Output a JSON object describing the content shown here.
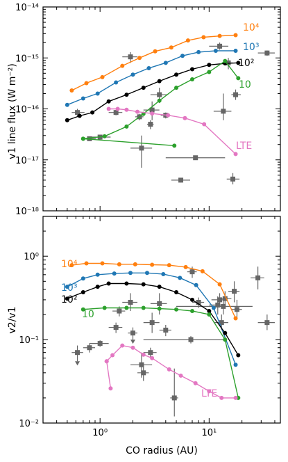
{
  "chart_data": [
    {
      "type": "scatter",
      "panel": "top",
      "ylabel": "v1 line flux (W m⁻²)",
      "xlabel": "",
      "xscale": "log",
      "yscale": "log",
      "xlim": [
        0.3,
        45
      ],
      "ylim": [
        1e-18,
        1e-14
      ],
      "ytick_labels": [
        "10⁻¹⁸",
        "10⁻¹⁷",
        "10⁻¹⁶",
        "10⁻¹⁵",
        "10⁻¹⁴"
      ],
      "series": [
        {
          "name": "10⁴",
          "color": "#ff7f0e",
          "x": [
            0.55,
            0.75,
            1.05,
            1.6,
            2.3,
            3.2,
            4.5,
            6.4,
            8.9,
            12.5,
            17.5
          ],
          "y": [
            2.3e-16,
            3.2e-16,
            4.2e-16,
            7e-16,
            1e-15,
            1.35e-15,
            1.6e-15,
            2.2e-15,
            2.55e-15,
            2.7e-15,
            2.8e-15
          ]
        },
        {
          "name": "10³",
          "color": "#1f77b4",
          "x": [
            0.5,
            0.7,
            0.95,
            1.4,
            2.0,
            2.8,
            4.0,
            5.7,
            8.0,
            11.5,
            17.5
          ],
          "y": [
            1.2e-16,
            1.6e-16,
            2e-16,
            3.3e-16,
            4.7e-16,
            6.3e-16,
            8e-16,
            1.1e-15,
            1.3e-15,
            1.38e-15,
            1.38e-15
          ]
        },
        {
          "name": "10²",
          "color": "#000000",
          "x": [
            0.5,
            0.65,
            0.85,
            1.2,
            1.75,
            2.5,
            3.5,
            5.0,
            7.0,
            10.0,
            14.0,
            18.5
          ],
          "y": [
            6e-17,
            7.3e-17,
            8.5e-17,
            1.4e-16,
            1.9e-16,
            2.6e-16,
            3.5e-16,
            4.7e-16,
            6e-16,
            7.3e-16,
            7.8e-16,
            8e-16
          ]
        },
        {
          "name": "10",
          "color": "#2ca02c",
          "x": [
            0.7,
            1.1,
            1.75,
            2.5,
            3.5,
            5.0,
            7.0,
            10.0,
            14.0,
            18.5
          ],
          "y": [
            2.6e-17,
            2.9e-17,
            4.5e-17,
            8e-17,
            1.45e-16,
            2.6e-16,
            3.8e-16,
            5.3e-16,
            8.7e-16,
            4e-16
          ]
        },
        {
          "name": "LTE",
          "color": "#e377c2",
          "x": [
            1.2,
            1.45,
            1.75,
            2.2,
            3.0,
            4.2,
            6.0,
            9.0,
            17.5
          ],
          "y": [
            1e-16,
            1e-16,
            9.6e-17,
            8.8e-17,
            8.1e-17,
            7.5e-17,
            6.6e-17,
            5e-17,
            1.3e-17
          ]
        },
        {
          "name": "",
          "color": "#2ca02c",
          "x": [
            0.7,
            4.8
          ],
          "y": [
            2.6e-17,
            1.9e-17
          ]
        }
      ],
      "observations": {
        "color": "#666666",
        "points": [
          {
            "x": 0.62,
            "y": 8.5e-17,
            "xerr": [
              0.55,
              0.72
            ],
            "yerr": [
              7e-17,
              1e-16
            ]
          },
          {
            "x": 0.8,
            "y": 2.6e-17,
            "xerr": [
              0.7,
              0.92
            ],
            "yerr": [
              2.4e-17,
              2.8e-17
            ]
          },
          {
            "x": 1.0,
            "y": 2.8e-17,
            "xerr": [
              0.8,
              1.25
            ],
            "yerr": [
              2.6e-17,
              3e-17
            ]
          },
          {
            "x": 1.4,
            "y": 8.5e-17,
            "xerr": [
              1.2,
              1.6
            ],
            "yerr": [
              7.5e-17,
              9.5e-17
            ]
          },
          {
            "x": 1.9,
            "y": 1.05e-15,
            "xerr": [
              1.6,
              2.2
            ],
            "yerr": [
              8e-16,
              1.3e-15
            ]
          },
          {
            "x": 2.3,
            "y": 7e-17,
            "xerr": [
              2.1,
              2.5
            ],
            "yerr": [
              6e-17,
              8e-17
            ]
          },
          {
            "x": 2.4,
            "y": 1.7e-17,
            "xerr": [
              1.9,
              3.0
            ],
            "yerr": [
              7e-18,
              3e-17
            ]
          },
          {
            "x": 2.9,
            "y": 5e-17,
            "xerr": [
              2.7,
              3.1
            ],
            "yerr": [
              4e-17,
              6e-17
            ]
          },
          {
            "x": 3.0,
            "y": 9.5e-17,
            "xerr": [
              2.5,
              3.5
            ],
            "yerr": [
              6e-17,
              1.4e-16
            ]
          },
          {
            "x": 3.5,
            "y": 1.9e-16,
            "xerr": [
              2.9,
              4.1
            ],
            "yerr": [
              1.3e-16,
              2.6e-16
            ]
          },
          {
            "x": 4.0,
            "y": 7.5e-17,
            "xerr": [
              3.6,
              4.4
            ],
            "yerr": [
              6.5e-17,
              8.5e-17
            ]
          },
          {
            "x": 5.5,
            "y": 4e-18,
            "xerr": [
              4.5,
              6.7
            ],
            "yerr": [
              3.6e-18,
              4.4e-18
            ]
          },
          {
            "x": 7.5,
            "y": 1.1e-17,
            "xerr": [
              4.0,
              14.0
            ],
            "yerr": [
              1e-17,
              1.2e-17
            ]
          },
          {
            "x": 12.5,
            "y": 1.7e-15,
            "xerr": [
              10.0,
              15.0
            ],
            "yerr": [
              1.45e-15,
              2e-15
            ]
          },
          {
            "x": 13.5,
            "y": 9e-17,
            "xerr": [
              11.0,
              16.0
            ],
            "yerr": [
              6e-17,
              2e-16
            ]
          },
          {
            "x": 15.0,
            "y": 8e-16,
            "xerr": [
              13.5,
              16.5
            ],
            "yerr": [
              6e-16,
              1e-15
            ]
          },
          {
            "x": 16.5,
            "y": 4.2e-18,
            "xerr": [
              14.5,
              19.0
            ],
            "yerr": [
              3.3e-18,
              5.5e-18
            ]
          },
          {
            "x": 17.5,
            "y": 1.9e-16,
            "xerr": [
              16.0,
              19.5
            ],
            "yerr": [
              1.5e-16,
              2.4e-16
            ]
          },
          {
            "x": 34.0,
            "y": 1.25e-15,
            "xerr": [
              28.0,
              40.0
            ],
            "yerr": [
              1.1e-15,
              1.4e-15
            ]
          }
        ]
      }
    },
    {
      "type": "scatter",
      "panel": "bottom",
      "ylabel": "v2/v1",
      "xlabel": "CO radius (AU)",
      "xscale": "log",
      "yscale": "log",
      "xlim": [
        0.3,
        45
      ],
      "ylim": [
        0.01,
        3
      ],
      "xtick_labels": [
        "10⁰",
        "10¹"
      ],
      "ytick_labels": [
        "10⁻²",
        "10⁻¹",
        "10⁰"
      ],
      "series": [
        {
          "name": "10⁴",
          "color": "#ff7f0e",
          "x": [
            0.55,
            0.75,
            1.05,
            1.5,
            2.1,
            3.0,
            4.3,
            6.1,
            8.7,
            12.5,
            17.5
          ],
          "y": [
            0.78,
            0.82,
            0.82,
            0.8,
            0.8,
            0.79,
            0.78,
            0.74,
            0.66,
            0.46,
            0.18
          ]
        },
        {
          "name": "10³",
          "color": "#1f77b4",
          "x": [
            0.5,
            0.7,
            0.95,
            1.35,
            1.9,
            2.7,
            3.8,
            5.4,
            7.6,
            11.0,
            17.5
          ],
          "y": [
            0.43,
            0.54,
            0.6,
            0.62,
            0.63,
            0.63,
            0.61,
            0.55,
            0.45,
            0.24,
            0.05
          ]
        },
        {
          "name": "10²",
          "color": "#000000",
          "x": [
            0.5,
            0.7,
            0.95,
            1.2,
            1.75,
            2.5,
            3.5,
            5.0,
            7.0,
            10.0,
            14.0,
            18.5
          ],
          "y": [
            0.31,
            0.37,
            0.43,
            0.47,
            0.47,
            0.46,
            0.43,
            0.37,
            0.3,
            0.22,
            0.12,
            0.065
          ]
        },
        {
          "name": "10",
          "color": "#2ca02c",
          "x": [
            0.7,
            1.1,
            1.75,
            2.5,
            3.5,
            5.0,
            7.0,
            10.0,
            14.0,
            18.5
          ],
          "y": [
            0.23,
            0.24,
            0.24,
            0.24,
            0.235,
            0.23,
            0.22,
            0.2,
            0.1,
            0.02
          ]
        },
        {
          "name": "LTE",
          "color": "#e377c2",
          "x": [
            1.15,
            1.3,
            1.6,
            2.0,
            2.5,
            3.0,
            4.3,
            5.5,
            7.5,
            10.0,
            13.0,
            17.5
          ],
          "y": [
            0.055,
            0.065,
            0.085,
            0.08,
            0.066,
            0.06,
            0.044,
            0.037,
            0.03,
            0.024,
            0.02,
            0.02
          ]
        },
        {
          "name": "",
          "color": "#e377c2",
          "x": [
            1.15,
            1.25
          ],
          "y": [
            0.055,
            0.026
          ]
        }
      ],
      "observations": {
        "color": "#666666",
        "points": [
          {
            "x": 0.62,
            "y": 0.07,
            "xerr": [
              0.55,
              0.7
            ],
            "yerr": [
              0.055,
              0.085
            ],
            "upper_limit": true
          },
          {
            "x": 0.8,
            "y": 0.08,
            "xerr": [
              0.7,
              0.9
            ],
            "yerr": [
              0.07,
              0.09
            ]
          },
          {
            "x": 1.0,
            "y": 0.09,
            "xerr": [
              0.8,
              1.2
            ],
            "yerr": [
              0.082,
              0.098
            ]
          },
          {
            "x": 1.4,
            "y": 0.14,
            "xerr": [
              1.2,
              1.6
            ],
            "yerr": [
              0.12,
              0.16
            ]
          },
          {
            "x": 1.5,
            "y": 0.22,
            "xerr": [
              1.3,
              1.7
            ],
            "yerr": [
              0.19,
              0.25
            ]
          },
          {
            "x": 1.9,
            "y": 0.28,
            "xerr": [
              1.6,
              2.2
            ],
            "yerr": [
              0.22,
              0.36
            ]
          },
          {
            "x": 2.0,
            "y": 0.12,
            "xerr": [
              1.8,
              2.2
            ],
            "yerr": [
              0.1,
              0.14
            ],
            "upper_limit": true
          },
          {
            "x": 2.4,
            "y": 0.05,
            "xerr": [
              1.9,
              3.0
            ],
            "yerr": [
              0.035,
              0.07
            ]
          },
          {
            "x": 2.5,
            "y": 0.04,
            "xerr": [
              2.2,
              2.8
            ],
            "yerr": [
              0.032,
              0.05
            ]
          },
          {
            "x": 2.9,
            "y": 0.07,
            "xerr": [
              2.5,
              3.3
            ],
            "yerr": [
              0.06,
              0.08
            ]
          },
          {
            "x": 3.0,
            "y": 0.16,
            "xerr": [
              2.5,
              3.5
            ],
            "yerr": [
              0.12,
              0.21
            ]
          },
          {
            "x": 3.5,
            "y": 0.27,
            "xerr": [
              2.9,
              4.1
            ],
            "yerr": [
              0.2,
              0.36
            ]
          },
          {
            "x": 4.0,
            "y": 0.13,
            "xerr": [
              3.5,
              4.5
            ],
            "yerr": [
              0.11,
              0.15
            ]
          },
          {
            "x": 4.8,
            "y": 0.02,
            "xerr": [
              4.4,
              5.2
            ],
            "yerr": [
              0.012,
              0.045
            ]
          },
          {
            "x": 6.8,
            "y": 0.1,
            "xerr": [
              2.5,
              14.0
            ],
            "yerr": [
              0.09,
              0.11
            ]
          },
          {
            "x": 7.0,
            "y": 0.65,
            "xerr": [
              6.3,
              7.7
            ],
            "yerr": [
              0.55,
              0.75
            ]
          },
          {
            "x": 8.0,
            "y": 0.28,
            "xerr": [
              7.0,
              9.0
            ],
            "yerr": [
              0.24,
              0.32
            ]
          },
          {
            "x": 12.0,
            "y": 0.26,
            "xerr": [
              10.0,
              14.0
            ],
            "yerr": [
              0.2,
              0.33
            ]
          },
          {
            "x": 12.5,
            "y": 0.3,
            "xerr": [
              10.5,
              14.5
            ],
            "yerr": [
              0.25,
              0.36
            ]
          },
          {
            "x": 13.0,
            "y": 0.16,
            "xerr": [
              11.0,
              15.0
            ],
            "yerr": [
              0.13,
              0.2
            ]
          },
          {
            "x": 13.5,
            "y": 0.25,
            "xerr": [
              5.0,
              25.0
            ],
            "yerr": [
              0.2,
              0.3
            ]
          },
          {
            "x": 14.0,
            "y": 0.31,
            "xerr": [
              12.0,
              16.0
            ],
            "yerr": [
              0.25,
              0.38
            ]
          },
          {
            "x": 17.0,
            "y": 0.38,
            "xerr": [
              15.0,
              19.0
            ],
            "yerr": [
              0.28,
              0.5
            ]
          },
          {
            "x": 18.0,
            "y": 0.23,
            "xerr": [
              16.0,
              20.0
            ],
            "yerr": [
              0.18,
              0.3
            ]
          },
          {
            "x": 28.0,
            "y": 0.55,
            "xerr": [
              24.0,
              32.0
            ],
            "yerr": [
              0.4,
              0.75
            ]
          },
          {
            "x": 34.0,
            "y": 0.16,
            "xerr": [
              28.0,
              40.0
            ],
            "yerr": [
              0.13,
              0.2
            ]
          }
        ]
      }
    }
  ]
}
